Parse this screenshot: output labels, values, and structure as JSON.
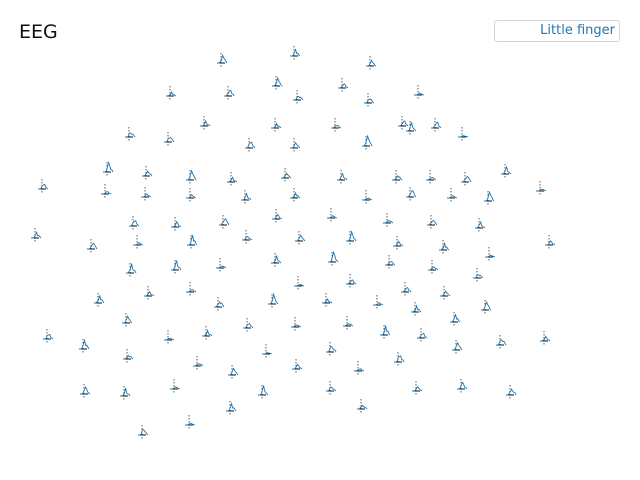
{
  "chart_data": {
    "type": "line",
    "title": "EEG",
    "layout": "topographic",
    "channel_count": 117,
    "legend_position": "top-right",
    "series": [
      {
        "name": "Little finger",
        "color": "#1f77b4"
      }
    ],
    "axes": {
      "baseline_color": "#111111",
      "onset_marker": "dashed vertical line at stimulus onset",
      "onset_color": "#333333"
    },
    "waveform": {
      "pre_onset": [
        0.0,
        0.0,
        0.0
      ],
      "post_onset": [
        0.2,
        0.5,
        0.9,
        0.6,
        0.4,
        0.2,
        0.0
      ]
    }
  }
}
